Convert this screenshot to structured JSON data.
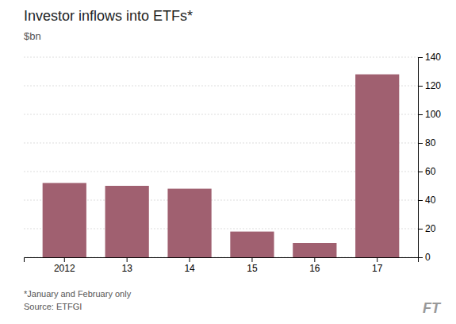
{
  "chart_data": {
    "type": "bar",
    "title": "Investor inflows into ETFs*",
    "subtitle": "$bn",
    "categories": [
      "2012",
      "13",
      "14",
      "15",
      "16",
      "17"
    ],
    "values": [
      52,
      50,
      48,
      18,
      10,
      128
    ],
    "color": "#a06070",
    "ylim": [
      0,
      140
    ],
    "yticks": [
      0,
      20,
      40,
      60,
      80,
      100,
      120,
      140
    ],
    "grid": true,
    "annotations": [
      "*January and February only",
      "Source: ETFGI",
      "FT"
    ]
  }
}
